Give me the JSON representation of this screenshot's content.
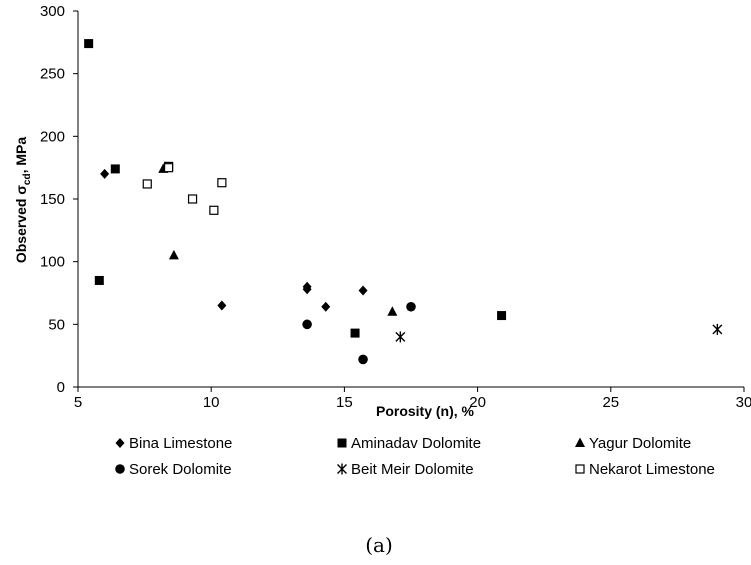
{
  "chart_data": {
    "type": "scatter",
    "caption": "(a)",
    "xlabel": "Porosity (n), %",
    "ylabel": "Observed σcd, MPa",
    "ylabel_parts": {
      "prefix": "Observed σ",
      "subscript": "cd",
      "suffix": ", MPa"
    },
    "xlim": [
      5,
      30
    ],
    "ylim": [
      0,
      300
    ],
    "xticks": [
      5,
      10,
      15,
      20,
      25,
      30
    ],
    "yticks": [
      0,
      50,
      100,
      150,
      200,
      250,
      300
    ],
    "grid": false,
    "legend_position": "bottom",
    "series": [
      {
        "name": "Bina Limestone",
        "marker": "diamond",
        "color": "#000000",
        "points": [
          [
            6.0,
            170
          ],
          [
            10.4,
            65
          ],
          [
            13.6,
            80
          ],
          [
            13.6,
            78
          ],
          [
            14.3,
            64
          ],
          [
            15.7,
            77
          ]
        ]
      },
      {
        "name": "Aminadav Dolomite",
        "marker": "square",
        "color": "#000000",
        "points": [
          [
            5.4,
            274
          ],
          [
            5.8,
            85
          ],
          [
            6.4,
            174
          ],
          [
            15.4,
            43
          ],
          [
            20.9,
            57
          ]
        ]
      },
      {
        "name": "Yagur Dolomite",
        "marker": "triangle",
        "color": "#000000",
        "points": [
          [
            8.2,
            174
          ],
          [
            8.6,
            105
          ],
          [
            16.8,
            60
          ]
        ]
      },
      {
        "name": "Sorek Dolomite",
        "marker": "circle",
        "color": "#000000",
        "points": [
          [
            13.6,
            50
          ],
          [
            15.7,
            22
          ],
          [
            17.5,
            64
          ]
        ]
      },
      {
        "name": "Beit Meir Dolomite",
        "marker": "asterisk",
        "color": "#000000",
        "points": [
          [
            17.1,
            40
          ],
          [
            29.0,
            46
          ]
        ]
      },
      {
        "name": "Nekarot Limestone",
        "marker": "open-square",
        "color": "#000000",
        "points": [
          [
            7.6,
            162
          ],
          [
            8.4,
            176
          ],
          [
            8.4,
            175
          ],
          [
            9.3,
            150
          ],
          [
            10.1,
            141
          ],
          [
            10.4,
            163
          ]
        ]
      }
    ]
  }
}
